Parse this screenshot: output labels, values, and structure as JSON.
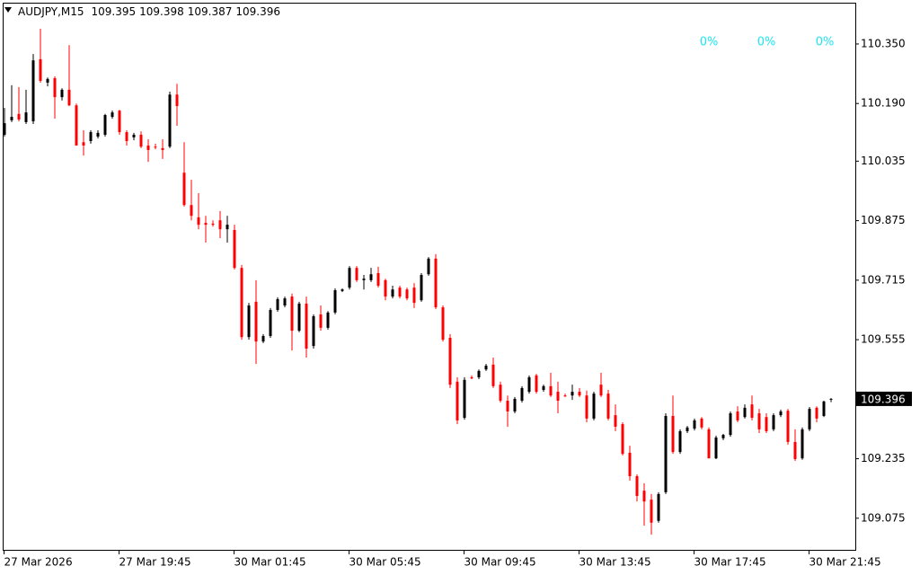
{
  "chart_data": {
    "type": "candlestick",
    "title": "AUDJPY,M15",
    "up_color": "#000000",
    "down_color": "#ff0000",
    "annotation_color": "#1ee6f0",
    "annotations": [
      "0%",
      "0%",
      "0%"
    ],
    "ylim": [
      108.99,
      110.461
    ],
    "yticks": [
      {
        "value": 110.35,
        "label": "110.350"
      },
      {
        "value": 110.19,
        "label": "110.190"
      },
      110.035,
      109.875,
      109.715,
      109.555,
      109.235,
      109.075
    ],
    "categories": [
      "27 Mar 2026",
      null,
      null,
      null,
      null,
      null,
      null,
      null,
      null,
      null,
      null,
      null,
      null,
      null,
      null,
      null,
      "27 Mar 19:45",
      null,
      null,
      null,
      null,
      null,
      null,
      null,
      null,
      null,
      null,
      null,
      null,
      null,
      null,
      null,
      "30 Mar 01:45",
      null,
      null,
      null,
      null,
      null,
      null,
      null,
      null,
      null,
      null,
      null,
      null,
      null,
      null,
      null,
      "30 Mar 05:45",
      null,
      null,
      null,
      null,
      null,
      null,
      null,
      null,
      null,
      null,
      null,
      null,
      null,
      null,
      null,
      "30 Mar 09:45",
      null,
      null,
      null,
      null,
      null,
      null,
      null,
      null,
      null,
      null,
      null,
      null,
      null,
      null,
      null,
      "30 Mar 13:45",
      null,
      null,
      null,
      null,
      null,
      null,
      null,
      null,
      null,
      null,
      null,
      null,
      null,
      null,
      null,
      "30 Mar 17:45",
      null,
      null,
      null,
      null,
      null,
      null,
      null,
      null,
      null,
      null,
      null,
      null,
      null,
      null,
      null,
      "30 Mar 21:45",
      null,
      null,
      null
    ],
    "open": [
      110.106,
      110.145,
      110.162,
      110.14,
      110.142,
      110.309,
      110.246,
      110.258,
      110.207,
      110.227,
      110.185,
      110.086,
      110.089,
      110.101,
      110.106,
      110.154,
      110.171,
      110.113,
      110.099,
      110.106,
      110.077,
      110.074,
      110.07,
      110.074,
      110.214,
      110.004,
      109.917,
      109.884,
      109.869,
      109.867,
      109.876,
      109.852,
      109.85,
      109.748,
      109.562,
      109.657,
      109.55,
      109.565,
      109.635,
      109.647,
      109.671,
      109.579,
      109.652,
      109.538,
      109.623,
      109.587,
      109.628,
      109.686,
      109.695,
      109.748,
      109.715,
      109.715,
      109.734,
      109.715,
      109.671,
      109.695,
      109.69,
      109.695,
      109.661,
      109.731,
      109.773,
      109.642,
      109.56,
      109.442,
      109.345,
      109.454,
      109.454,
      109.475,
      109.488,
      109.434,
      109.391,
      109.362,
      109.391,
      109.415,
      109.459,
      109.42,
      109.43,
      109.415,
      109.405,
      109.405,
      109.415,
      109.405,
      109.343,
      109.434,
      109.41,
      109.352,
      109.328,
      109.251,
      109.188,
      109.149,
      109.125,
      109.068,
      109.145,
      109.35,
      109.253,
      109.309,
      109.316,
      109.343,
      109.314,
      109.236,
      109.29,
      109.299,
      109.362,
      109.347,
      109.381,
      109.357,
      109.347,
      109.314,
      109.352,
      109.364,
      109.28,
      109.236,
      109.314,
      109.372,
      109.35,
      109.395
    ],
    "high": [
      110.178,
      110.239,
      110.234,
      110.227,
      110.323,
      110.391,
      110.26,
      110.263,
      110.231,
      110.347,
      110.19,
      110.118,
      110.118,
      110.118,
      110.162,
      110.171,
      110.173,
      110.118,
      110.111,
      110.115,
      110.094,
      110.082,
      110.094,
      110.222,
      110.243,
      110.086,
      109.985,
      109.949,
      109.888,
      109.876,
      109.901,
      109.888,
      109.864,
      109.756,
      109.654,
      109.715,
      109.57,
      109.64,
      109.669,
      109.671,
      109.679,
      109.657,
      109.671,
      109.623,
      109.647,
      109.632,
      109.693,
      109.693,
      109.753,
      109.753,
      109.729,
      109.748,
      109.751,
      109.719,
      109.7,
      109.7,
      109.695,
      109.707,
      109.734,
      109.777,
      109.785,
      109.647,
      109.57,
      109.454,
      109.454,
      109.459,
      109.475,
      109.49,
      109.507,
      109.442,
      109.405,
      109.401,
      109.43,
      109.459,
      109.463,
      109.434,
      109.466,
      109.442,
      109.41,
      109.434,
      109.425,
      109.418,
      109.415,
      109.466,
      109.42,
      109.381,
      109.333,
      109.27,
      109.193,
      109.169,
      109.14,
      109.145,
      109.357,
      109.405,
      109.314,
      109.323,
      109.343,
      109.347,
      109.319,
      109.297,
      109.302,
      109.362,
      109.376,
      109.381,
      109.405,
      109.369,
      109.357,
      109.357,
      109.367,
      109.369,
      109.314,
      109.319,
      109.374,
      109.376,
      109.391,
      109.398
    ],
    "low": [
      110.101,
      110.14,
      110.142,
      110.135,
      110.135,
      110.246,
      110.236,
      110.149,
      110.198,
      110.183,
      110.077,
      110.05,
      110.082,
      110.096,
      110.101,
      110.149,
      110.106,
      110.077,
      110.091,
      110.07,
      110.033,
      110.067,
      110.041,
      110.07,
      110.13,
      109.913,
      109.876,
      109.852,
      109.816,
      109.859,
      109.828,
      109.816,
      109.744,
      109.555,
      109.555,
      109.49,
      109.546,
      109.56,
      109.63,
      109.642,
      109.526,
      109.575,
      109.507,
      109.531,
      109.579,
      109.582,
      109.623,
      109.683,
      109.69,
      109.71,
      109.69,
      109.71,
      109.695,
      109.661,
      109.666,
      109.666,
      109.661,
      109.64,
      109.657,
      109.727,
      109.637,
      109.55,
      109.425,
      109.328,
      109.34,
      109.449,
      109.449,
      109.471,
      109.425,
      109.386,
      109.321,
      109.357,
      109.386,
      109.41,
      109.41,
      109.415,
      109.401,
      109.357,
      109.401,
      109.393,
      109.401,
      109.333,
      109.338,
      109.401,
      109.338,
      109.309,
      109.244,
      109.176,
      109.12,
      109.055,
      109.031,
      109.063,
      109.14,
      109.248,
      109.248,
      109.304,
      109.311,
      109.314,
      109.236,
      109.234,
      109.285,
      109.294,
      109.333,
      109.343,
      109.338,
      109.304,
      109.304,
      109.309,
      109.347,
      109.273,
      109.229,
      109.232,
      109.309,
      109.333,
      109.347,
      109.387
    ],
    "close": [
      110.137,
      110.154,
      110.147,
      110.166,
      110.306,
      110.251,
      110.256,
      110.207,
      110.227,
      110.185,
      110.077,
      110.077,
      110.113,
      110.111,
      110.159,
      110.166,
      110.113,
      110.089,
      110.106,
      110.074,
      110.065,
      110.072,
      110.065,
      110.214,
      110.183,
      109.917,
      109.888,
      109.864,
      109.864,
      109.864,
      109.852,
      109.864,
      109.748,
      109.562,
      109.647,
      109.55,
      109.565,
      109.635,
      109.664,
      109.666,
      109.579,
      109.652,
      109.531,
      109.618,
      109.587,
      109.628,
      109.688,
      109.69,
      109.748,
      109.715,
      109.719,
      109.731,
      109.7,
      109.671,
      109.69,
      109.671,
      109.666,
      109.654,
      109.729,
      109.773,
      109.642,
      109.555,
      109.434,
      109.338,
      109.447,
      109.451,
      109.471,
      109.485,
      109.43,
      109.391,
      109.362,
      109.396,
      109.425,
      109.454,
      109.415,
      109.43,
      109.405,
      109.391,
      109.403,
      109.415,
      109.405,
      109.343,
      109.41,
      109.405,
      109.343,
      109.321,
      109.248,
      109.188,
      109.135,
      109.12,
      109.063,
      109.14,
      109.35,
      109.253,
      109.309,
      109.319,
      109.338,
      109.319,
      109.236,
      109.292,
      109.299,
      109.357,
      109.338,
      109.372,
      109.345,
      109.314,
      109.309,
      109.352,
      109.362,
      109.28,
      109.234,
      109.314,
      109.369,
      109.343,
      109.389,
      109.396
    ]
  }
}
